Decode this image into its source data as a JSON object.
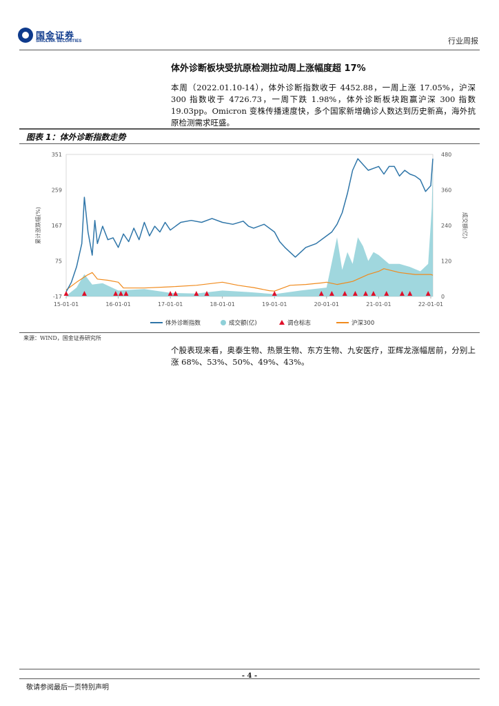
{
  "header": {
    "logo_cn": "国金证券",
    "logo_en": "SINOLINK SECURITIES",
    "report_type": "行业周报"
  },
  "headline": "体外诊断板块受抗原检测拉动周上涨幅度超 17%",
  "paragraph1": "本周（2022.01.10-14），体外诊断指数收于 4452.88，一周上涨 17.05%，沪深 300 指数收于 4726.73，一周下跌 1.98%，体外诊断板块跑赢沪深 300 指数 19.03pp。Omicron 变株传播速度快，多个国家新增确诊人数达到历史新高，海外抗原检测需求旺盛。",
  "figure": {
    "title": "图表 1：体外诊断指数走势",
    "source": "来源：WIND，国金证券研究所"
  },
  "paragraph2": "个股表现来看，奥泰生物、热景生物、东方生物、九安医疗，亚辉龙涨幅居前，分别上涨 68%、53%、50%、49%、43%。",
  "footer": {
    "page_number": "- 4 -",
    "note": "敬请参阅最后一页特别声明"
  },
  "chart_data": {
    "type": "line",
    "x_ticks": [
      "15-01-01",
      "16-01-01",
      "17-01-01",
      "18-01-01",
      "19-01-01",
      "20-01-01",
      "21-01-01",
      "22-01-01"
    ],
    "y_left_ticks": [
      -17,
      75,
      167,
      259,
      351
    ],
    "y_right_ticks": [
      0,
      120,
      240,
      360,
      480
    ],
    "ylabel_left": "累计涨跌幅(%)",
    "ylabel_right": "成交额(亿)",
    "ylim_left": [
      -17,
      351
    ],
    "ylim_right": [
      0,
      480
    ],
    "legend": [
      "体外诊断指数",
      "成交额(亿)",
      "调仓标志",
      "沪深300"
    ],
    "legend_position": "bottom",
    "colors": {
      "ivd_index": "#2e75a8",
      "turnover": "#8fd0d8",
      "rebalance": "#e0102a",
      "csi300": "#f08a1c"
    },
    "series": [
      {
        "name": "体外诊断指数",
        "axis": "left",
        "x": [
          2015.0,
          2015.1,
          2015.2,
          2015.3,
          2015.35,
          2015.42,
          2015.5,
          2015.55,
          2015.6,
          2015.7,
          2015.8,
          2015.9,
          2016.0,
          2016.1,
          2016.2,
          2016.3,
          2016.4,
          2016.5,
          2016.6,
          2016.7,
          2016.8,
          2016.9,
          2017.0,
          2017.2,
          2017.4,
          2017.6,
          2017.8,
          2018.0,
          2018.2,
          2018.4,
          2018.5,
          2018.6,
          2018.8,
          2019.0,
          2019.1,
          2019.2,
          2019.4,
          2019.6,
          2019.8,
          2020.0,
          2020.1,
          2020.2,
          2020.3,
          2020.4,
          2020.5,
          2020.6,
          2020.7,
          2020.8,
          2020.9,
          2021.0,
          2021.1,
          2021.2,
          2021.3,
          2021.4,
          2021.5,
          2021.6,
          2021.7,
          2021.8,
          2021.9,
          2022.0,
          2022.04
        ],
        "values": [
          -5,
          20,
          60,
          120,
          240,
          150,
          90,
          180,
          120,
          165,
          130,
          135,
          110,
          145,
          125,
          160,
          130,
          175,
          140,
          165,
          150,
          175,
          155,
          175,
          180,
          175,
          185,
          175,
          170,
          178,
          165,
          160,
          170,
          150,
          125,
          110,
          85,
          110,
          120,
          140,
          150,
          170,
          200,
          250,
          310,
          340,
          325,
          310,
          315,
          320,
          300,
          320,
          320,
          295,
          310,
          300,
          295,
          285,
          255,
          270,
          340
        ]
      },
      {
        "name": "沪深300",
        "axis": "left",
        "x": [
          2015.0,
          2015.2,
          2015.4,
          2015.5,
          2015.6,
          2015.8,
          2016.0,
          2016.1,
          2016.5,
          2017.0,
          2017.5,
          2018.0,
          2018.3,
          2018.6,
          2018.9,
          2019.0,
          2019.3,
          2019.6,
          2019.9,
          2020.0,
          2020.2,
          2020.5,
          2020.8,
          2021.0,
          2021.1,
          2021.4,
          2021.7,
          2022.0,
          2022.04
        ],
        "values": [
          0,
          20,
          38,
          45,
          28,
          25,
          20,
          5,
          5,
          8,
          12,
          20,
          12,
          6,
          -2,
          -3,
          12,
          14,
          18,
          20,
          14,
          22,
          40,
          48,
          55,
          45,
          40,
          40,
          38
        ]
      },
      {
        "name": "成交额(亿)",
        "axis": "right",
        "type": "area",
        "x": [
          2015.0,
          2015.2,
          2015.35,
          2015.5,
          2015.7,
          2016.0,
          2016.5,
          2017.0,
          2017.5,
          2018.0,
          2018.5,
          2019.0,
          2019.5,
          2020.0,
          2020.2,
          2020.3,
          2020.4,
          2020.5,
          2020.6,
          2020.7,
          2020.8,
          2020.9,
          2021.0,
          2021.2,
          2021.4,
          2021.6,
          2021.8,
          2021.95,
          2022.02,
          2022.04
        ],
        "values": [
          2,
          30,
          75,
          40,
          45,
          20,
          25,
          12,
          10,
          20,
          15,
          8,
          20,
          30,
          200,
          90,
          150,
          110,
          200,
          170,
          120,
          150,
          140,
          110,
          110,
          100,
          85,
          110,
          300,
          450
        ]
      }
    ],
    "rebalance_markers_x": [
      2015.0,
      2015.35,
      2015.95,
      2016.05,
      2016.15,
      2017.0,
      2017.1,
      2017.5,
      2017.7,
      2019.0,
      2019.9,
      2020.1,
      2020.35,
      2020.55,
      2020.75,
      2020.9,
      2021.15,
      2021.45,
      2021.6,
      2021.95
    ]
  }
}
